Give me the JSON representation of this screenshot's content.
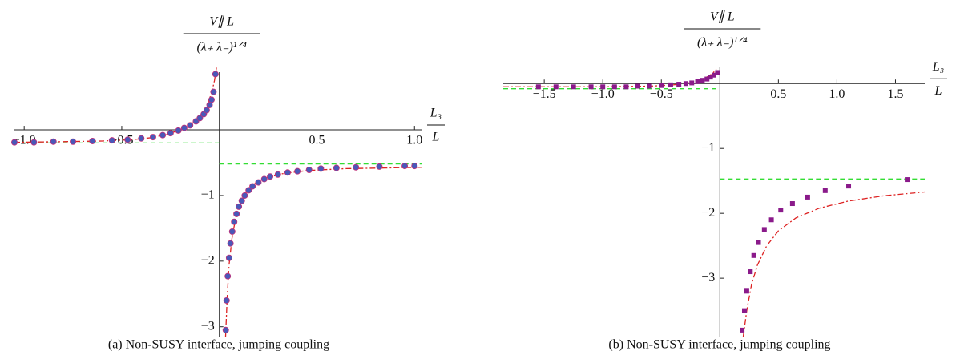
{
  "chart_data": [
    {
      "type": "scatter",
      "caption": "(a) Non-SUSY interface, jumping coupling",
      "y_label": {
        "numerator": "V∥ L",
        "denominator": "(λ₊ λ₋)¹ᐟ⁴"
      },
      "x_label": {
        "numerator": "L₃",
        "denominator": "L"
      },
      "xlim": [
        -1.05,
        1.04
      ],
      "ylim": [
        -3.15,
        0.88
      ],
      "xticks": [
        {
          "value": -1,
          "label": "−1.0"
        },
        {
          "value": -0.5,
          "label": "−0.5"
        },
        0.5,
        {
          "value": 1,
          "label": "1.0"
        }
      ],
      "yticks": [
        {
          "value": -1,
          "label": "−1"
        },
        {
          "value": -2,
          "label": "−2"
        },
        {
          "value": -3,
          "label": "−3"
        }
      ],
      "marker": "circle",
      "series": [
        {
          "style": "dashed",
          "color": "#33dd33",
          "x": [
            -1.05,
            0
          ],
          "y": [
            -0.2,
            -0.2
          ]
        },
        {
          "style": "dashed",
          "color": "#33dd33",
          "x": [
            0,
            1.04
          ],
          "y": [
            -0.52,
            -0.52
          ]
        },
        {
          "style": "dashdot",
          "color": "#dd2222",
          "x": [
            -1.05,
            -0.8,
            -0.6,
            -0.45,
            -0.35,
            -0.27,
            -0.2,
            -0.15,
            -0.11,
            -0.08,
            -0.06,
            -0.04,
            -0.025,
            -0.015
          ],
          "y": [
            -0.19,
            -0.18,
            -0.17,
            -0.15,
            -0.12,
            -0.07,
            0.0,
            0.07,
            0.17,
            0.29,
            0.4,
            0.56,
            0.75,
            0.95
          ]
        },
        {
          "style": "dashdot",
          "color": "#dd2222",
          "x": [
            0.032,
            0.04,
            0.05,
            0.065,
            0.08,
            0.1,
            0.13,
            0.17,
            0.23,
            0.32,
            0.45,
            0.65,
            0.85,
            1.04
          ],
          "y": [
            -3.15,
            -2.55,
            -2.05,
            -1.65,
            -1.4,
            -1.18,
            -0.98,
            -0.84,
            -0.74,
            -0.67,
            -0.62,
            -0.59,
            -0.58,
            -0.57
          ]
        },
        {
          "style": "points",
          "color": "#4a58b8",
          "x": [
            -1.05,
            -0.95,
            -0.85,
            -0.75,
            -0.65,
            -0.55,
            -0.47,
            -0.4,
            -0.34,
            -0.29,
            -0.25,
            -0.21,
            -0.18,
            -0.15,
            -0.12,
            -0.1,
            -0.08,
            -0.065,
            -0.05,
            -0.04,
            -0.03,
            -0.02
          ],
          "y": [
            -0.19,
            -0.19,
            -0.18,
            -0.18,
            -0.17,
            -0.16,
            -0.15,
            -0.13,
            -0.11,
            -0.08,
            -0.05,
            -0.01,
            0.03,
            0.07,
            0.13,
            0.18,
            0.24,
            0.3,
            0.38,
            0.46,
            0.58,
            0.85
          ]
        },
        {
          "style": "points",
          "color": "#4a58b8",
          "x": [
            0.033,
            0.037,
            0.043,
            0.05,
            0.057,
            0.066,
            0.076,
            0.088,
            0.1,
            0.115,
            0.13,
            0.15,
            0.17,
            0.2,
            0.23,
            0.26,
            0.3,
            0.35,
            0.4,
            0.46,
            0.52,
            0.6,
            0.7,
            0.82,
            0.95,
            1.0
          ],
          "y": [
            -3.05,
            -2.6,
            -2.23,
            -1.95,
            -1.73,
            -1.55,
            -1.4,
            -1.28,
            -1.17,
            -1.08,
            -1.0,
            -0.92,
            -0.86,
            -0.8,
            -0.75,
            -0.71,
            -0.68,
            -0.65,
            -0.63,
            -0.61,
            -0.59,
            -0.58,
            -0.57,
            -0.56,
            -0.55,
            -0.55
          ]
        }
      ]
    },
    {
      "type": "scatter",
      "caption": "(b) Non-SUSY interface, jumping coupling",
      "y_label": {
        "numerator": "V∥ L",
        "denominator": "(λ₊ λ₋)¹ᐟ⁴"
      },
      "x_label": {
        "numerator": "L₃",
        "denominator": "L"
      },
      "xlim": [
        -1.85,
        1.75
      ],
      "ylim": [
        -3.9,
        0.25
      ],
      "xticks": [
        {
          "value": -1.5,
          "label": "−1.5"
        },
        {
          "value": -1,
          "label": "−1.0"
        },
        {
          "value": -0.5,
          "label": "−0.5"
        },
        0.5,
        {
          "value": 1,
          "label": "1.0"
        },
        1.5
      ],
      "yticks": [
        {
          "value": -1,
          "label": "−1"
        },
        {
          "value": -2,
          "label": "−2"
        },
        {
          "value": -3,
          "label": "−3"
        }
      ],
      "marker": "square",
      "series": [
        {
          "style": "dashed",
          "color": "#33dd33",
          "x": [
            -1.85,
            0
          ],
          "y": [
            -0.08,
            -0.08
          ]
        },
        {
          "style": "dashed",
          "color": "#33dd33",
          "x": [
            0,
            1.75
          ],
          "y": [
            -1.47,
            -1.47
          ]
        },
        {
          "style": "dashdot",
          "color": "#dd2222",
          "x": [
            -1.85,
            -1.0,
            -0.6,
            -0.4,
            -0.3,
            -0.22,
            -0.15,
            -0.1,
            -0.06,
            -0.03
          ],
          "y": [
            -0.05,
            -0.05,
            -0.04,
            -0.02,
            0.0,
            0.03,
            0.07,
            0.11,
            0.16,
            0.22
          ]
        },
        {
          "style": "dashdot",
          "color": "#dd2222",
          "x": [
            0.2,
            0.23,
            0.27,
            0.32,
            0.4,
            0.5,
            0.65,
            0.85,
            1.1,
            1.4,
            1.75
          ],
          "y": [
            -3.9,
            -3.5,
            -3.1,
            -2.8,
            -2.5,
            -2.27,
            -2.07,
            -1.92,
            -1.81,
            -1.73,
            -1.67
          ]
        },
        {
          "style": "points",
          "color": "#8a1a8a",
          "x": [
            -1.55,
            -1.4,
            -1.25,
            -1.1,
            -1.0,
            -0.9,
            -0.8,
            -0.7,
            -0.6,
            -0.5,
            -0.42,
            -0.35,
            -0.29,
            -0.24,
            -0.19,
            -0.15,
            -0.11,
            -0.08,
            -0.05,
            -0.02
          ],
          "y": [
            -0.05,
            -0.05,
            -0.05,
            -0.05,
            -0.05,
            -0.05,
            -0.05,
            -0.04,
            -0.04,
            -0.03,
            -0.02,
            -0.01,
            0.0,
            0.01,
            0.03,
            0.05,
            0.07,
            0.1,
            0.13,
            0.17
          ]
        },
        {
          "style": "points",
          "color": "#8a1a8a",
          "x": [
            0.19,
            0.21,
            0.23,
            0.26,
            0.29,
            0.33,
            0.38,
            0.44,
            0.52,
            0.62,
            0.75,
            0.9,
            1.1,
            1.6
          ],
          "y": [
            -3.8,
            -3.5,
            -3.2,
            -2.9,
            -2.65,
            -2.45,
            -2.25,
            -2.1,
            -1.95,
            -1.85,
            -1.75,
            -1.65,
            -1.58,
            -1.48
          ]
        }
      ]
    }
  ]
}
